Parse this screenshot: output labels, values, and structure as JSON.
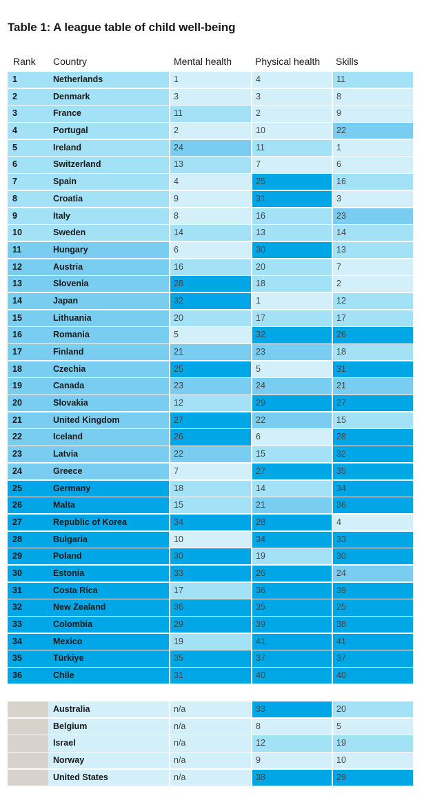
{
  "title": "Table 1: A league table of child well-being",
  "headers": [
    "Rank",
    "Country",
    "Mental health",
    "Physical health",
    "Skills"
  ],
  "colors": {
    "level1": "#d3f0fa",
    "level2": "#a3e1f6",
    "level3": "#78cdf0",
    "level4": "#00a6e5",
    "unranked": "#d7d2cc"
  },
  "rows": [
    {
      "rank": "1",
      "country": "Netherlands",
      "mental": "1",
      "physical": "4",
      "skills": "11"
    },
    {
      "rank": "2",
      "country": "Denmark",
      "mental": "3",
      "physical": "3",
      "skills": "8"
    },
    {
      "rank": "3",
      "country": "France",
      "mental": "11",
      "physical": "2",
      "skills": "9"
    },
    {
      "rank": "4",
      "country": "Portugal",
      "mental": "2",
      "physical": "10",
      "skills": "22"
    },
    {
      "rank": "5",
      "country": "Ireland",
      "mental": "24",
      "physical": "11",
      "skills": "1"
    },
    {
      "rank": "6",
      "country": "Switzerland",
      "mental": "13",
      "physical": "7",
      "skills": "6"
    },
    {
      "rank": "7",
      "country": "Spain",
      "mental": "4",
      "physical": "25",
      "skills": "16"
    },
    {
      "rank": "8",
      "country": "Croatia",
      "mental": "9",
      "physical": "31",
      "skills": "3"
    },
    {
      "rank": "9",
      "country": "Italy",
      "mental": "8",
      "physical": "16",
      "skills": "23"
    },
    {
      "rank": "10",
      "country": "Sweden",
      "mental": "14",
      "physical": "13",
      "skills": "14"
    },
    {
      "rank": "11",
      "country": "Hungary",
      "mental": "6",
      "physical": "30",
      "skills": "13"
    },
    {
      "rank": "12",
      "country": "Austria",
      "mental": "16",
      "physical": "20",
      "skills": "7"
    },
    {
      "rank": "13",
      "country": "Slovenia",
      "mental": "28",
      "physical": "18",
      "skills": "2"
    },
    {
      "rank": "14",
      "country": "Japan",
      "mental": "32",
      "physical": "1",
      "skills": "12"
    },
    {
      "rank": "15",
      "country": "Lithuania",
      "mental": "20",
      "physical": "17",
      "skills": "17"
    },
    {
      "rank": "16",
      "country": "Romania",
      "mental": "5",
      "physical": "32",
      "skills": "26"
    },
    {
      "rank": "17",
      "country": "Finland",
      "mental": "21",
      "physical": "23",
      "skills": "18"
    },
    {
      "rank": "18",
      "country": "Czechia",
      "mental": "25",
      "physical": "5",
      "skills": "31"
    },
    {
      "rank": "19",
      "country": "Canada",
      "mental": "23",
      "physical": "24",
      "skills": "21"
    },
    {
      "rank": "20",
      "country": "Slovakia",
      "mental": "12",
      "physical": "29",
      "skills": "27"
    },
    {
      "rank": "21",
      "country": "United Kingdom",
      "mental": "27",
      "physical": "22",
      "skills": "15"
    },
    {
      "rank": "22",
      "country": "Iceland",
      "mental": "26",
      "physical": "6",
      "skills": "28"
    },
    {
      "rank": "23",
      "country": "Latvia",
      "mental": "22",
      "physical": "15",
      "skills": "32"
    },
    {
      "rank": "24",
      "country": "Greece",
      "mental": "7",
      "physical": "27",
      "skills": "35"
    },
    {
      "rank": "25",
      "country": "Germany",
      "mental": "18",
      "physical": "14",
      "skills": "34"
    },
    {
      "rank": "26",
      "country": "Malta",
      "mental": "15",
      "physical": "21",
      "skills": "36"
    },
    {
      "rank": "27",
      "country": "Republic of Korea",
      "mental": "34",
      "physical": "28",
      "skills": "4"
    },
    {
      "rank": "28",
      "country": "Bulgaria",
      "mental": "10",
      "physical": "34",
      "skills": "33"
    },
    {
      "rank": "29",
      "country": "Poland",
      "mental": "30",
      "physical": "19",
      "skills": "30"
    },
    {
      "rank": "30",
      "country": "Estonia",
      "mental": "33",
      "physical": "26",
      "skills": "24"
    },
    {
      "rank": "31",
      "country": "Costa Rica",
      "mental": "17",
      "physical": "36",
      "skills": "39"
    },
    {
      "rank": "32",
      "country": "New Zealand",
      "mental": "36",
      "physical": "35",
      "skills": "25"
    },
    {
      "rank": "33",
      "country": "Colombia",
      "mental": "29",
      "physical": "39",
      "skills": "38"
    },
    {
      "rank": "34",
      "country": "Mexico",
      "mental": "19",
      "physical": "41",
      "skills": "41"
    },
    {
      "rank": "35",
      "country": "Türkiye",
      "mental": "35",
      "physical": "37",
      "skills": "37"
    },
    {
      "rank": "36",
      "country": "Chile",
      "mental": "31",
      "physical": "40",
      "skills": "40"
    }
  ],
  "unranked_rows": [
    {
      "rank": "",
      "country": "Australia",
      "mental": "n/a",
      "physical": "33",
      "skills": "20"
    },
    {
      "rank": "",
      "country": "Belgium",
      "mental": "n/a",
      "physical": "8",
      "skills": "5"
    },
    {
      "rank": "",
      "country": "Israel",
      "mental": "n/a",
      "physical": "12",
      "skills": "19"
    },
    {
      "rank": "",
      "country": "Norway",
      "mental": "n/a",
      "physical": "9",
      "skills": "10"
    },
    {
      "rank": "",
      "country": "United States",
      "mental": "n/a",
      "physical": "38",
      "skills": "29"
    }
  ]
}
